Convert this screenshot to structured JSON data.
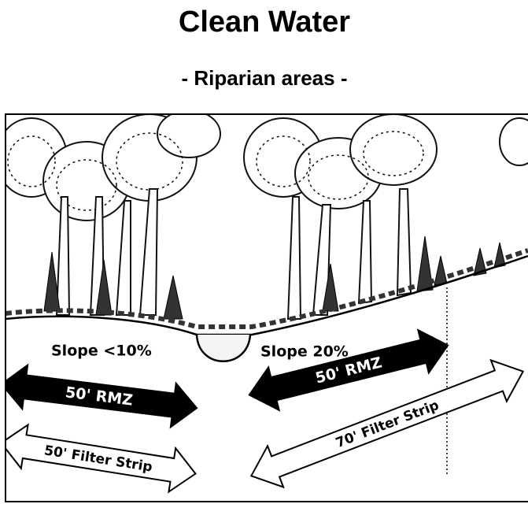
{
  "header": {
    "title": "Clean Water",
    "subtitle": "- Riparian areas -"
  },
  "diagram": {
    "slope_left": "Slope <10%",
    "slope_right": "Slope 20%",
    "left_rmz": "50' RMZ",
    "left_filter_strip": "50' Filter Strip",
    "right_rmz": "50' RMZ",
    "right_filter_strip": "70' Filter Strip"
  }
}
